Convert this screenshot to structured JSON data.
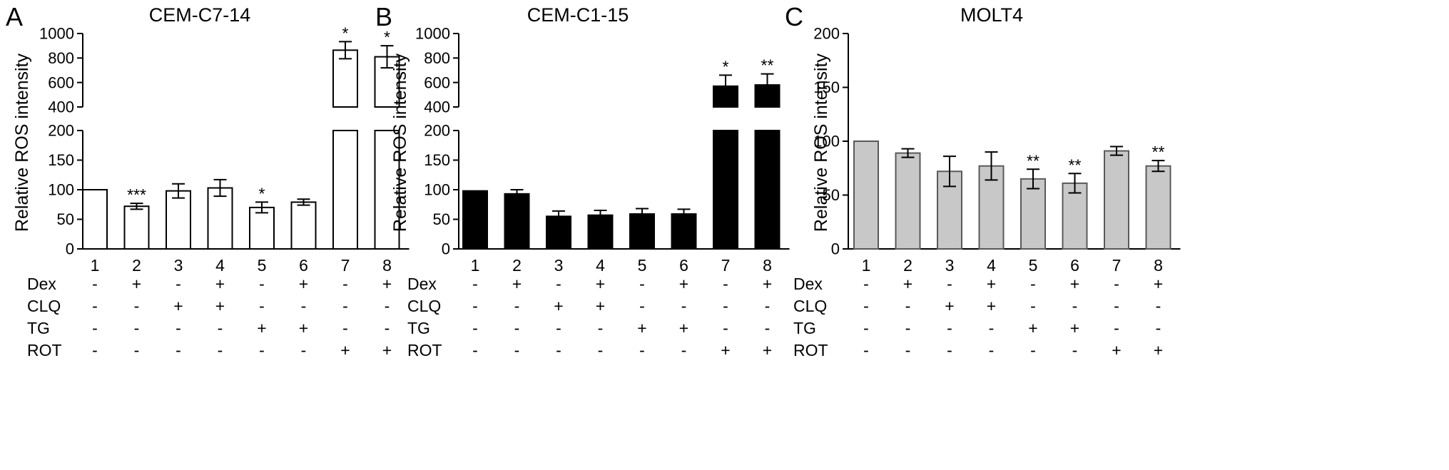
{
  "chart_data": [
    {
      "type": "bar",
      "panel": "A",
      "title": "CEM-C7-14",
      "ylabel": "Relative ROS intensity",
      "bar_fill": "#ffffff",
      "categories": [
        "1",
        "2",
        "3",
        "4",
        "5",
        "6",
        "7",
        "8"
      ],
      "values": [
        100,
        72,
        98,
        103,
        70,
        79,
        864,
        810
      ],
      "errors": [
        0,
        5,
        12,
        14,
        9,
        5,
        70,
        90
      ],
      "significance": [
        "",
        "***",
        "",
        "",
        "*",
        "",
        "*",
        "*"
      ],
      "axis_break": true,
      "lower_range": [
        0,
        200
      ],
      "upper_range": [
        400,
        1000
      ],
      "lower_ticks": [
        0,
        50,
        100,
        150,
        200
      ],
      "upper_ticks": [
        400,
        600,
        800,
        1000
      ]
    },
    {
      "type": "bar",
      "panel": "B",
      "title": "CEM-C1-15",
      "ylabel": "Relative ROS intensity",
      "bar_fill": "#000000",
      "categories": [
        "1",
        "2",
        "3",
        "4",
        "5",
        "6",
        "7",
        "8"
      ],
      "values": [
        98,
        93,
        55,
        57,
        59,
        59,
        570,
        580
      ],
      "errors": [
        0,
        7,
        9,
        8,
        9,
        8,
        90,
        90
      ],
      "significance": [
        "",
        "",
        "",
        "",
        "",
        "",
        "*",
        "**"
      ],
      "axis_break": true,
      "lower_range": [
        0,
        200
      ],
      "upper_range": [
        400,
        1000
      ],
      "lower_ticks": [
        0,
        50,
        100,
        150,
        200
      ],
      "upper_ticks": [
        400,
        600,
        800,
        1000
      ]
    },
    {
      "type": "bar",
      "panel": "C",
      "title": "MOLT4",
      "ylabel": "Relative ROS intensity",
      "bar_fill": "#c8c8c8",
      "categories": [
        "1",
        "2",
        "3",
        "4",
        "5",
        "6",
        "7",
        "8"
      ],
      "values": [
        100,
        89,
        72,
        77,
        65,
        61,
        91,
        77
      ],
      "errors": [
        0,
        4,
        14,
        13,
        9,
        9,
        4,
        5
      ],
      "significance": [
        "",
        "",
        "",
        "",
        "**",
        "**",
        "",
        "**"
      ],
      "axis_break": false,
      "ylim": [
        0,
        200
      ],
      "ticks": [
        0,
        50,
        100,
        150,
        200
      ]
    }
  ],
  "conditions": [
    {
      "label": "Dex",
      "values": [
        "-",
        "+",
        "-",
        "+",
        "-",
        "+",
        "-",
        "+"
      ]
    },
    {
      "label": "CLQ",
      "values": [
        "-",
        "-",
        "+",
        "+",
        "-",
        "-",
        "-",
        "-"
      ]
    },
    {
      "label": "TG",
      "values": [
        "-",
        "-",
        "-",
        "-",
        "+",
        "+",
        "-",
        "-"
      ]
    },
    {
      "label": "ROT",
      "values": [
        "-",
        "-",
        "-",
        "-",
        "-",
        "-",
        "+",
        "+"
      ]
    }
  ]
}
